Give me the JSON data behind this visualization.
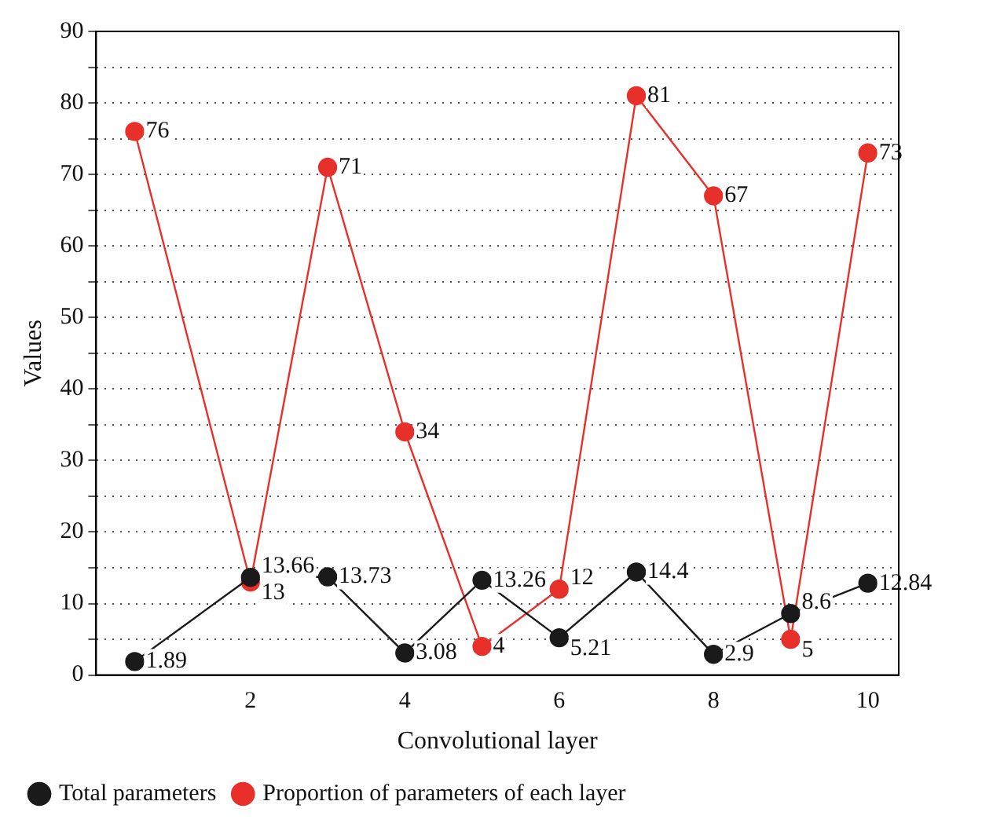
{
  "chart_data": {
    "type": "line",
    "xlabel": "Convolutional layer",
    "ylabel": "Values",
    "x": [
      0.5,
      2,
      3,
      4,
      5,
      6,
      7,
      8,
      9,
      10
    ],
    "series": [
      {
        "name": "Total parameters",
        "color": "#1a1a1a",
        "values": [
          1.89,
          13.66,
          13.73,
          3.08,
          13.26,
          5.21,
          14.4,
          2.9,
          8.6,
          12.84
        ]
      },
      {
        "name": "Proportion of parameters of each layer",
        "color": "#e8302a",
        "values": [
          76,
          13,
          71,
          34,
          4,
          12,
          81,
          67,
          5,
          73
        ]
      }
    ],
    "xlim": [
      0,
      10.4
    ],
    "xticks": [
      2,
      4,
      6,
      8,
      10
    ],
    "ylim": [
      0,
      90
    ],
    "yticks": [
      0,
      {
        "value": 5,
        "label": null
      },
      10,
      {
        "value": 15,
        "label": null
      },
      20,
      {
        "value": 25,
        "label": null
      },
      30,
      {
        "value": 35,
        "label": null
      },
      40,
      {
        "value": 45,
        "label": null
      },
      50,
      {
        "value": 55,
        "label": null
      },
      60,
      {
        "value": 65,
        "label": null
      },
      70,
      {
        "value": 75,
        "label": null
      },
      80,
      {
        "value": 85,
        "label": null
      },
      90
    ],
    "grid": "y",
    "marker": "circle",
    "line_style": "solid",
    "legend": "bottom",
    "data_labels": true
  }
}
